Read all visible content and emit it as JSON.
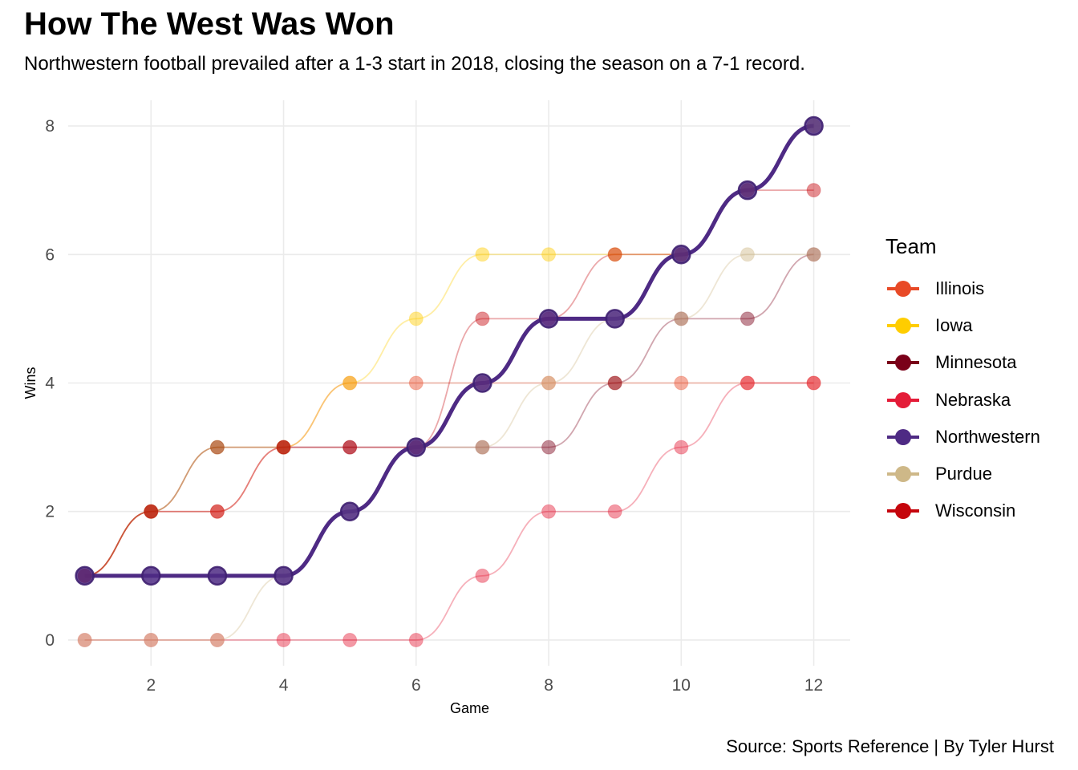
{
  "title": "How The West Was Won",
  "subtitle": "Northwestern football prevailed after a 1-3 start in 2018, closing the season on a 7-1 record.",
  "caption": "Source: Sports Reference | By Tyler Hurst",
  "chart_data": {
    "type": "line",
    "xlabel": "Game",
    "ylabel": "Wins",
    "xlim": [
      0.75,
      12.55
    ],
    "ylim": [
      -0.4,
      8.4
    ],
    "x_ticks": [
      2,
      4,
      6,
      8,
      10,
      12
    ],
    "y_ticks": [
      0,
      2,
      4,
      6,
      8
    ],
    "grid": true,
    "legend_title": "Team",
    "legend_position": "right",
    "highlight": "Northwestern",
    "x": [
      1,
      2,
      3,
      4,
      5,
      6,
      7,
      8,
      9,
      10,
      11,
      12
    ],
    "series": [
      {
        "name": "Illinois",
        "color": "#E84A27",
        "values": [
          1,
          2,
          2,
          3,
          4,
          4,
          4,
          4,
          4,
          4,
          4,
          4
        ]
      },
      {
        "name": "Iowa",
        "color": "#FFCD00",
        "values": [
          1,
          2,
          3,
          3,
          4,
          5,
          6,
          6,
          6,
          6,
          7,
          8
        ]
      },
      {
        "name": "Minnesota",
        "color": "#7A0019",
        "values": [
          1,
          2,
          3,
          3,
          3,
          3,
          3,
          3,
          4,
          5,
          5,
          6
        ]
      },
      {
        "name": "Nebraska",
        "color": "#E41C38",
        "values": [
          0,
          0,
          0,
          0,
          0,
          0,
          1,
          2,
          2,
          3,
          4,
          4
        ]
      },
      {
        "name": "Northwestern",
        "color": "#4E2A84",
        "values": [
          1,
          1,
          1,
          1,
          2,
          3,
          4,
          5,
          5,
          6,
          7,
          8
        ]
      },
      {
        "name": "Purdue",
        "color": "#CEB888",
        "values": [
          0,
          0,
          0,
          1,
          2,
          3,
          3,
          4,
          5,
          5,
          6,
          6
        ]
      },
      {
        "name": "Wisconsin",
        "color": "#C5050C",
        "values": [
          1,
          2,
          2,
          3,
          3,
          3,
          5,
          5,
          6,
          6,
          7,
          7
        ]
      }
    ]
  }
}
